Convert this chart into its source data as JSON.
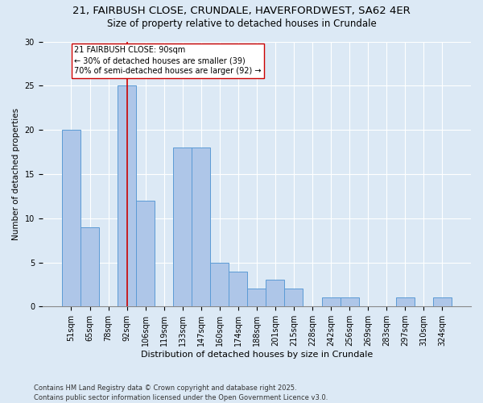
{
  "title_line1": "21, FAIRBUSH CLOSE, CRUNDALE, HAVERFORDWEST, SA62 4ER",
  "title_line2": "Size of property relative to detached houses in Crundale",
  "xlabel": "Distribution of detached houses by size in Crundale",
  "ylabel": "Number of detached properties",
  "categories": [
    "51sqm",
    "65sqm",
    "78sqm",
    "92sqm",
    "106sqm",
    "119sqm",
    "133sqm",
    "147sqm",
    "160sqm",
    "174sqm",
    "188sqm",
    "201sqm",
    "215sqm",
    "228sqm",
    "242sqm",
    "256sqm",
    "269sqm",
    "283sqm",
    "297sqm",
    "310sqm",
    "324sqm"
  ],
  "values": [
    20,
    9,
    0,
    25,
    12,
    0,
    18,
    18,
    5,
    4,
    2,
    3,
    2,
    0,
    1,
    1,
    0,
    0,
    1,
    0,
    1
  ],
  "bar_color": "#aec6e8",
  "bar_edge_color": "#5b9bd5",
  "vline_x_idx": 3,
  "vline_color": "#cc0000",
  "annotation_text": "21 FAIRBUSH CLOSE: 90sqm\n← 30% of detached houses are smaller (39)\n70% of semi-detached houses are larger (92) →",
  "annotation_box_color": "#ffffff",
  "annotation_box_edge": "#cc0000",
  "footer_line1": "Contains HM Land Registry data © Crown copyright and database right 2025.",
  "footer_line2": "Contains public sector information licensed under the Open Government Licence v3.0.",
  "ylim": [
    0,
    30
  ],
  "yticks": [
    0,
    5,
    10,
    15,
    20,
    25,
    30
  ],
  "background_color": "#dce9f5",
  "title_fontsize": 9.5,
  "subtitle_fontsize": 8.5,
  "xlabel_fontsize": 8,
  "ylabel_fontsize": 7.5,
  "tick_fontsize": 7,
  "ann_fontsize": 7,
  "footer_fontsize": 6
}
